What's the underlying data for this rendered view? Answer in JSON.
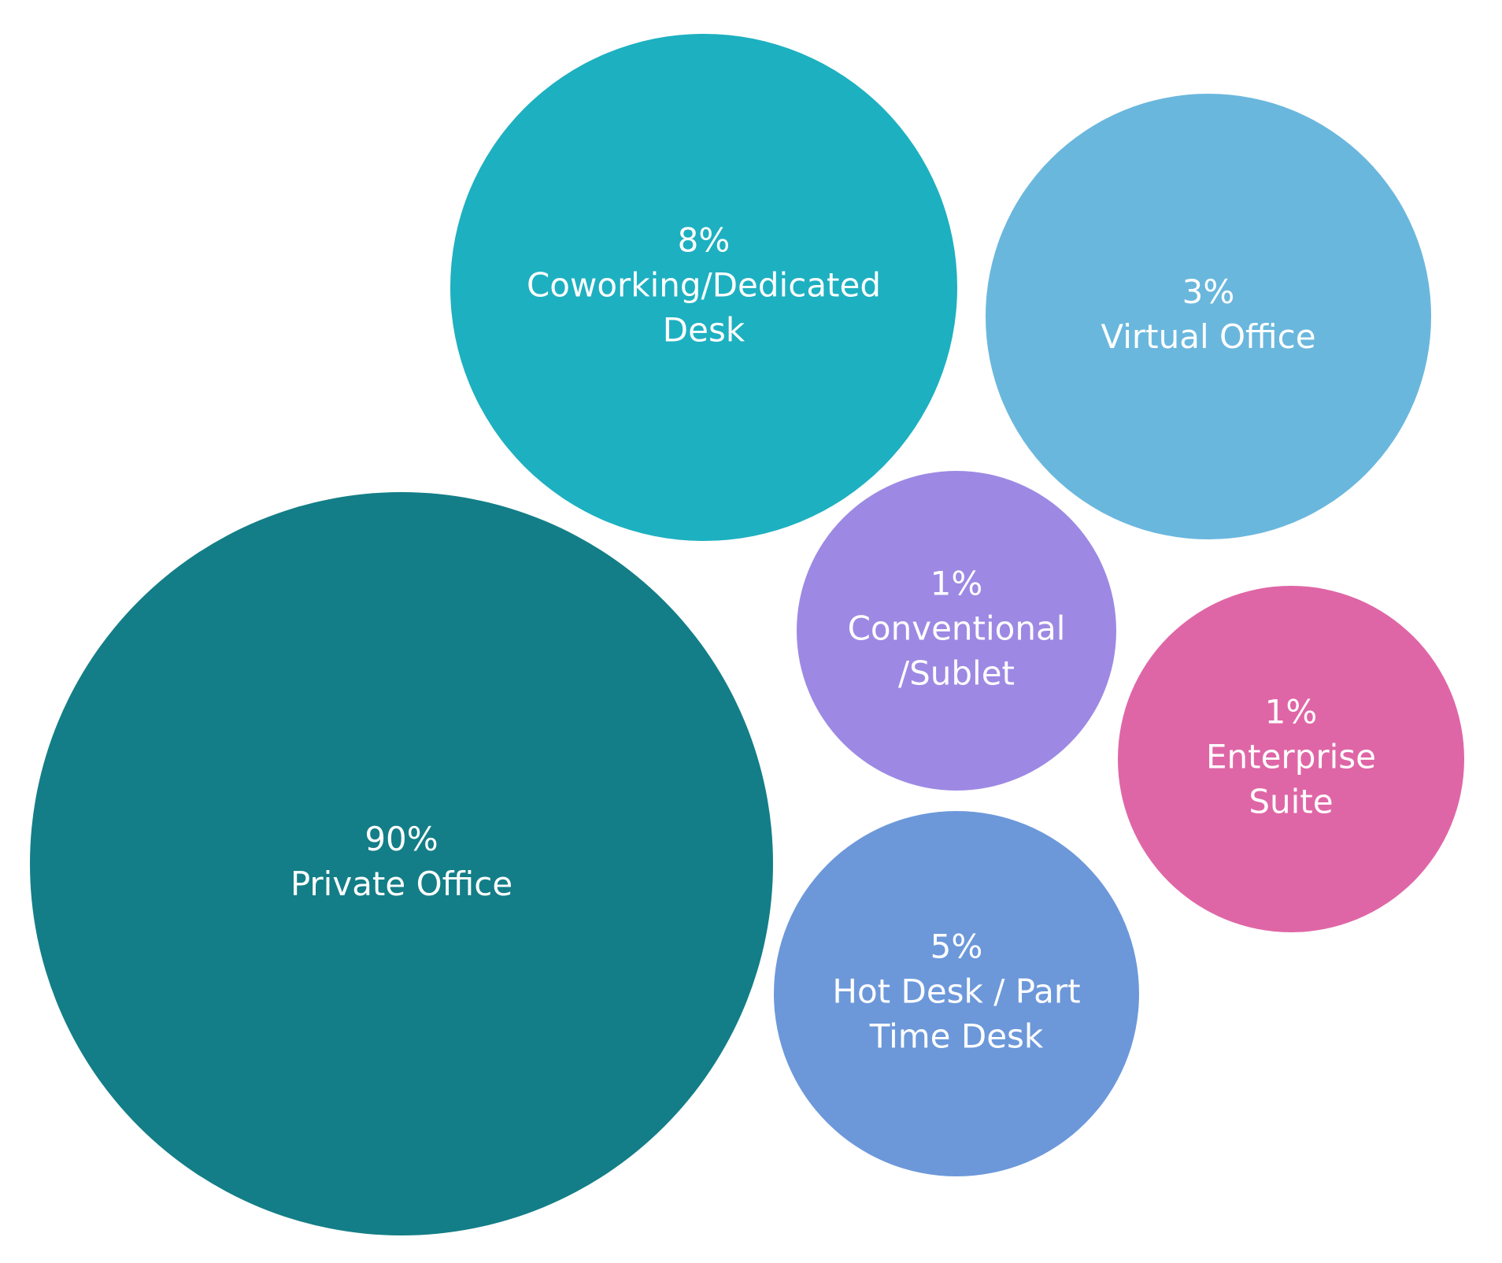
{
  "chart_data": {
    "type": "bubble",
    "title": "",
    "series": [
      {
        "value_label": "90%",
        "value": 90,
        "label_lines": [
          "Private Office"
        ],
        "color": "#137e87"
      },
      {
        "value_label": "8%",
        "value": 8,
        "label_lines": [
          "Coworking/Dedicated",
          "Desk"
        ],
        "color": "#1db0c0"
      },
      {
        "value_label": "3%",
        "value": 3,
        "label_lines": [
          "Virtual Office"
        ],
        "color": "#6ab7dd"
      },
      {
        "value_label": "1%",
        "value": 1,
        "label_lines": [
          "Conventional",
          "/Sublet"
        ],
        "color": "#9d89e3"
      },
      {
        "value_label": "1%",
        "value": 1,
        "label_lines": [
          "Enterprise",
          "Suite"
        ],
        "color": "#df66a6"
      },
      {
        "value_label": "5%",
        "value": 5,
        "label_lines": [
          "Hot Desk / Part",
          "Time Desk"
        ],
        "color": "#6c98da"
      }
    ]
  }
}
